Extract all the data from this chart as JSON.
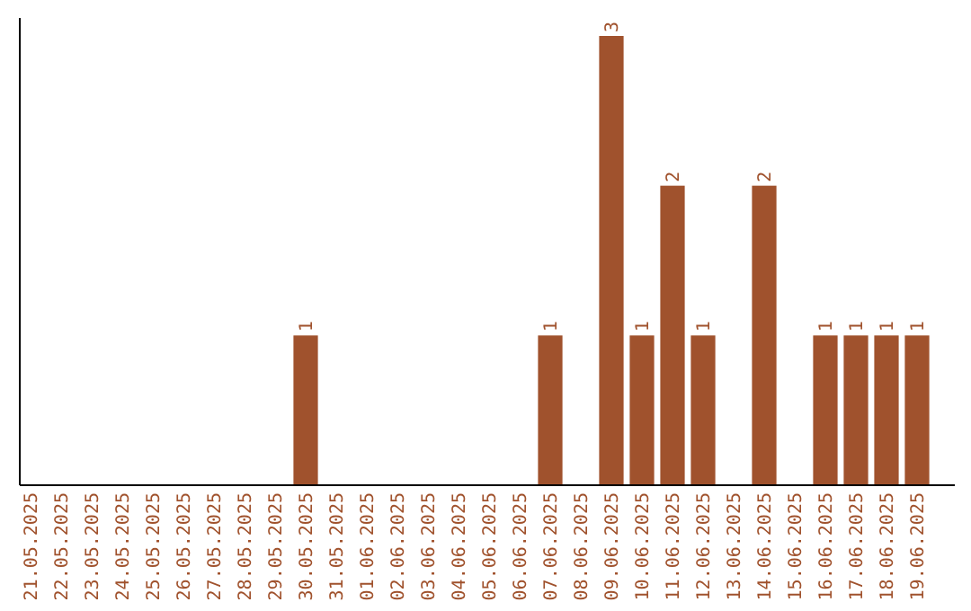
{
  "chart_data": {
    "type": "bar",
    "categories": [
      "21.05.2025",
      "22.05.2025",
      "23.05.2025",
      "24.05.2025",
      "25.05.2025",
      "26.05.2025",
      "27.05.2025",
      "28.05.2025",
      "29.05.2025",
      "30.05.2025",
      "31.05.2025",
      "01.06.2025",
      "02.06.2025",
      "03.06.2025",
      "04.06.2025",
      "05.06.2025",
      "06.06.2025",
      "07.06.2025",
      "08.06.2025",
      "09.06.2025",
      "10.06.2025",
      "11.06.2025",
      "12.06.2025",
      "13.06.2025",
      "14.06.2025",
      "15.06.2025",
      "16.06.2025",
      "17.06.2025",
      "18.06.2025",
      "19.06.2025"
    ],
    "values": [
      0,
      0,
      0,
      0,
      0,
      0,
      0,
      0,
      0,
      1,
      0,
      0,
      0,
      0,
      0,
      0,
      0,
      1,
      0,
      3,
      1,
      2,
      1,
      0,
      2,
      0,
      1,
      1,
      1,
      1
    ],
    "value_labels": [
      null,
      null,
      null,
      null,
      null,
      null,
      null,
      null,
      null,
      "1",
      null,
      null,
      null,
      null,
      null,
      null,
      null,
      "1",
      null,
      "3",
      "1",
      "2",
      "1",
      null,
      "2",
      null,
      "1",
      "1",
      "1",
      "1"
    ],
    "color": "#a0522d"
  }
}
